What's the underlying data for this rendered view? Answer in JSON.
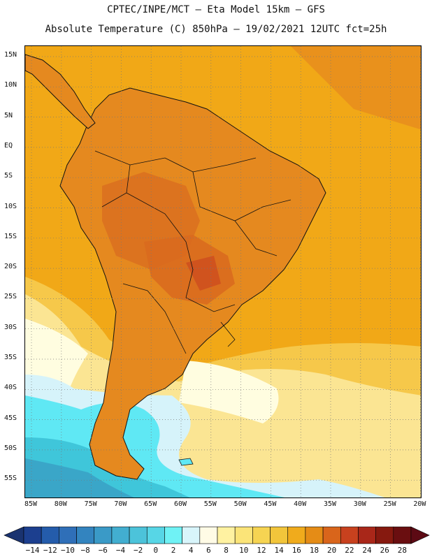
{
  "header": {
    "line1": "CPTEC/INPE/MCT –  Eta Model 15km – GFS",
    "line2": "Absolute Temperature (C) 850hPa – 19/02/2021 12UTC fct=25h"
  },
  "map": {
    "lat_ticks": [
      "15N",
      "10N",
      "5N",
      "EQ",
      "5S",
      "10S",
      "15S",
      "20S",
      "25S",
      "30S",
      "35S",
      "40S",
      "45S",
      "50S",
      "55S"
    ],
    "lon_ticks": [
      "85W",
      "80W",
      "75W",
      "70W",
      "65W",
      "60W",
      "55W",
      "50W",
      "45W",
      "40W",
      "35W",
      "30W",
      "25W",
      "20W"
    ],
    "colors": {
      "ocean_warm": "#f1a817",
      "land_hot": "#e5891f",
      "land_hotter": "#d96a1f",
      "mild": "#f6c84a",
      "cool": "#fbe593",
      "cold": "#fffde0",
      "icy": "#d6f3fa",
      "cyan": "#5fe8f4",
      "teal": "#3fc6da",
      "blue": "#3aa6c8"
    }
  },
  "colorbar": {
    "labels": [
      "-14",
      "-12",
      "-10",
      "-8",
      "-6",
      "-4",
      "-2",
      "0",
      "2",
      "4",
      "6",
      "8",
      "10",
      "12",
      "14",
      "16",
      "18",
      "20",
      "22",
      "24",
      "26",
      "28"
    ],
    "colors": [
      "#1c3f8f",
      "#245cab",
      "#2f6fb8",
      "#3384bf",
      "#3a9ac7",
      "#42aed0",
      "#4cc3da",
      "#57d6e6",
      "#6ff2f5",
      "#d8f5fb",
      "#fffbe6",
      "#fff2a1",
      "#fbe478",
      "#f6d452",
      "#f2c53b",
      "#f0ab1c",
      "#e58c16",
      "#d9651b",
      "#c8411e",
      "#a92719",
      "#86190f",
      "#6a0e10"
    ],
    "under_color": "#1a3370",
    "over_color": "#5c0a14"
  }
}
